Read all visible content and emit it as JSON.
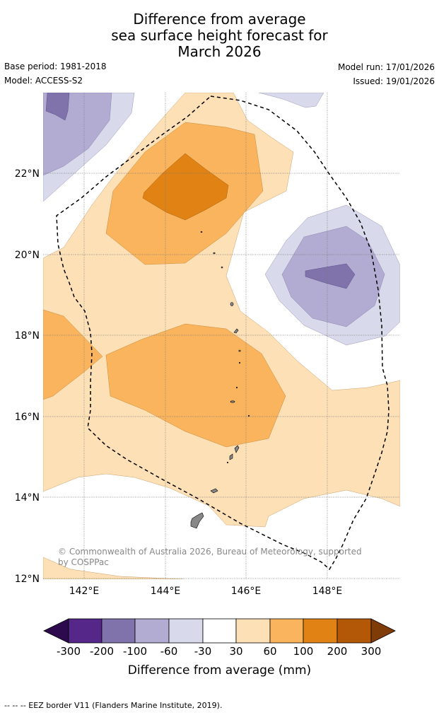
{
  "title": {
    "line1": "Difference from average",
    "line2": "sea surface height forecast for",
    "line3": "March 2026"
  },
  "meta": {
    "base_period": "Base period: 1981-2018",
    "model": "Model: ACCESS-S2",
    "model_run": "Model run: 17/01/2026",
    "issued": "Issued: 19/01/2026"
  },
  "map": {
    "lat_labels": [
      "22°N",
      "20°N",
      "18°N",
      "16°N",
      "14°N",
      "12°N"
    ],
    "lon_labels": [
      "142°E",
      "144°E",
      "146°E",
      "148°E"
    ],
    "copyright_line1": "© Commonwealth of Australia 2026, Bureau of Meteorology, supported",
    "copyright_line2": "by COSPPac"
  },
  "colorbar": {
    "tick_labels": [
      "-300",
      "-200",
      "-100",
      "-60",
      "-30",
      "30",
      "60",
      "100",
      "200",
      "300"
    ],
    "title": "Difference from average (mm)",
    "colors": {
      "lt_-300": "#2d0a4e",
      "-300_-200": "#542788",
      "-200_-100": "#8073ac",
      "-100_-60": "#b2abd2",
      "-60_-30": "#d8daeb",
      "-30_30": "#ffffff",
      "30_60": "#fee0b6",
      "60_100": "#f9b45d",
      "100_200": "#e08214",
      "200_300": "#b35806",
      "gt_300": "#7f3b08"
    }
  },
  "legend": {
    "text": "--  --  -- EEZ border V11 (Flanders Marine Institute, 2019)."
  }
}
